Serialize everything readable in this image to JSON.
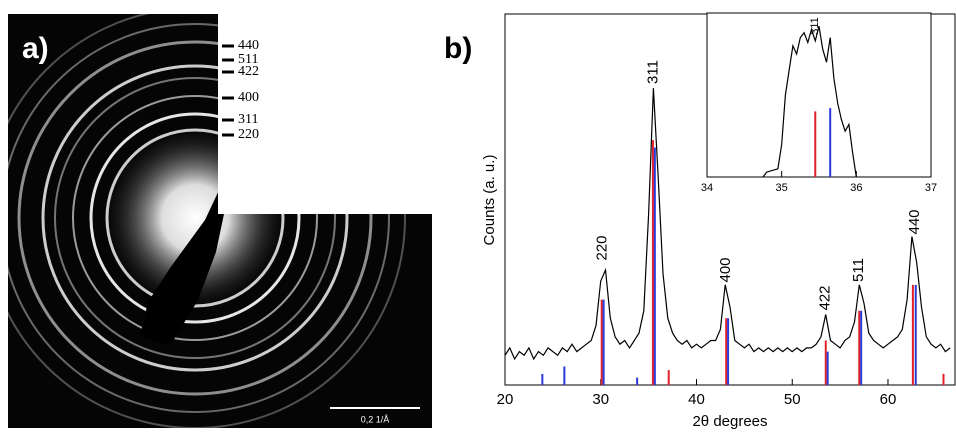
{
  "panel_a": {
    "label": "a)",
    "ring_labels": [
      "440",
      "511",
      "422",
      "400",
      "311",
      "220"
    ],
    "scale_bar": "0,2 1/Å"
  },
  "chart_data": [
    {
      "type": "line",
      "panel_label": "b)",
      "ylabel": "Counts (a. u.)",
      "xlabel": "2θ degrees",
      "xlim": [
        20,
        67
      ],
      "xticks": [
        20,
        30,
        40,
        50,
        60
      ],
      "ylim": [
        0,
        100
      ],
      "color": "#000000",
      "x": [
        20,
        20.5,
        21,
        21.5,
        22,
        22.5,
        23,
        23.5,
        24,
        24.5,
        25,
        25.5,
        26,
        26.5,
        27,
        27.5,
        28,
        28.5,
        29,
        29.5,
        30,
        30.5,
        31,
        31.5,
        32,
        32.5,
        33,
        33.5,
        34,
        34.5,
        35,
        35.5,
        36,
        36.5,
        37,
        37.5,
        38,
        38.5,
        39,
        39.5,
        40,
        40.5,
        41,
        41.5,
        42,
        42.5,
        43,
        43.5,
        44,
        44.5,
        45,
        45.5,
        46,
        46.5,
        47,
        47.5,
        48,
        48.5,
        49,
        49.5,
        50,
        50.5,
        51,
        51.5,
        52,
        52.5,
        53,
        53.5,
        54,
        54.5,
        55,
        55.5,
        56,
        56.5,
        57,
        57.5,
        58,
        58.5,
        59,
        59.5,
        60,
        60.5,
        61,
        61.5,
        62,
        62.5,
        63,
        63.5,
        64,
        64.5,
        65,
        65.5,
        66,
        66.5
      ],
      "values": [
        8,
        10,
        7,
        9,
        8,
        10,
        7,
        9,
        8,
        10,
        9,
        8,
        10,
        9,
        11,
        9,
        10,
        11,
        12,
        16,
        28,
        31,
        18,
        13,
        11,
        12,
        10,
        12,
        14,
        20,
        46,
        80,
        56,
        30,
        18,
        14,
        12,
        11,
        12,
        10,
        11,
        10,
        11,
        12,
        12,
        15,
        27,
        21,
        12,
        11,
        10,
        11,
        9,
        10,
        9,
        10,
        9,
        10,
        9,
        10,
        9,
        10,
        9,
        10,
        10,
        11,
        13,
        19,
        12,
        11,
        10,
        12,
        13,
        17,
        27,
        22,
        14,
        12,
        11,
        10,
        11,
        12,
        13,
        15,
        23,
        40,
        33,
        21,
        13,
        11,
        10,
        11,
        9,
        10
      ],
      "annotations": [
        "220",
        "311",
        "400",
        "422",
        "511",
        "440"
      ],
      "sticks": [
        {
          "color": "#e0202a",
          "x": [
            30.1,
            35.45,
            37.1,
            43.1,
            53.5,
            57.0,
            62.6,
            65.8
          ],
          "values": [
            23,
            66,
            4,
            18,
            12,
            20,
            27,
            3
          ]
        },
        {
          "color": "#2a3ad8",
          "x": [
            23.9,
            26.2,
            30.3,
            33.8,
            35.65,
            43.3,
            53.7,
            57.2,
            62.9
          ],
          "values": [
            3,
            5,
            23,
            2,
            64,
            18,
            9,
            20,
            27
          ]
        }
      ]
    },
    {
      "type": "line",
      "xlim": [
        34,
        37
      ],
      "xticks": [
        34,
        35,
        36,
        37
      ],
      "ylim": [
        0,
        100
      ],
      "color": "#000000",
      "x": [
        34.75,
        34.8,
        34.95,
        35.0,
        35.05,
        35.1,
        35.15,
        35.2,
        35.25,
        35.3,
        35.35,
        35.4,
        35.45,
        35.5,
        35.55,
        35.6,
        35.65,
        35.7,
        35.75,
        35.8,
        35.85,
        35.9,
        35.95,
        36.0
      ],
      "values": [
        0,
        3,
        5,
        20,
        50,
        65,
        80,
        75,
        85,
        88,
        82,
        90,
        83,
        92,
        78,
        70,
        85,
        60,
        45,
        35,
        28,
        32,
        15,
        0
      ],
      "annotations": [
        "311"
      ],
      "sticks": [
        {
          "color": "#e0202a",
          "x": [
            35.45
          ],
          "values": [
            40
          ]
        },
        {
          "color": "#2a3ad8",
          "x": [
            35.65
          ],
          "values": [
            42
          ]
        }
      ]
    }
  ]
}
